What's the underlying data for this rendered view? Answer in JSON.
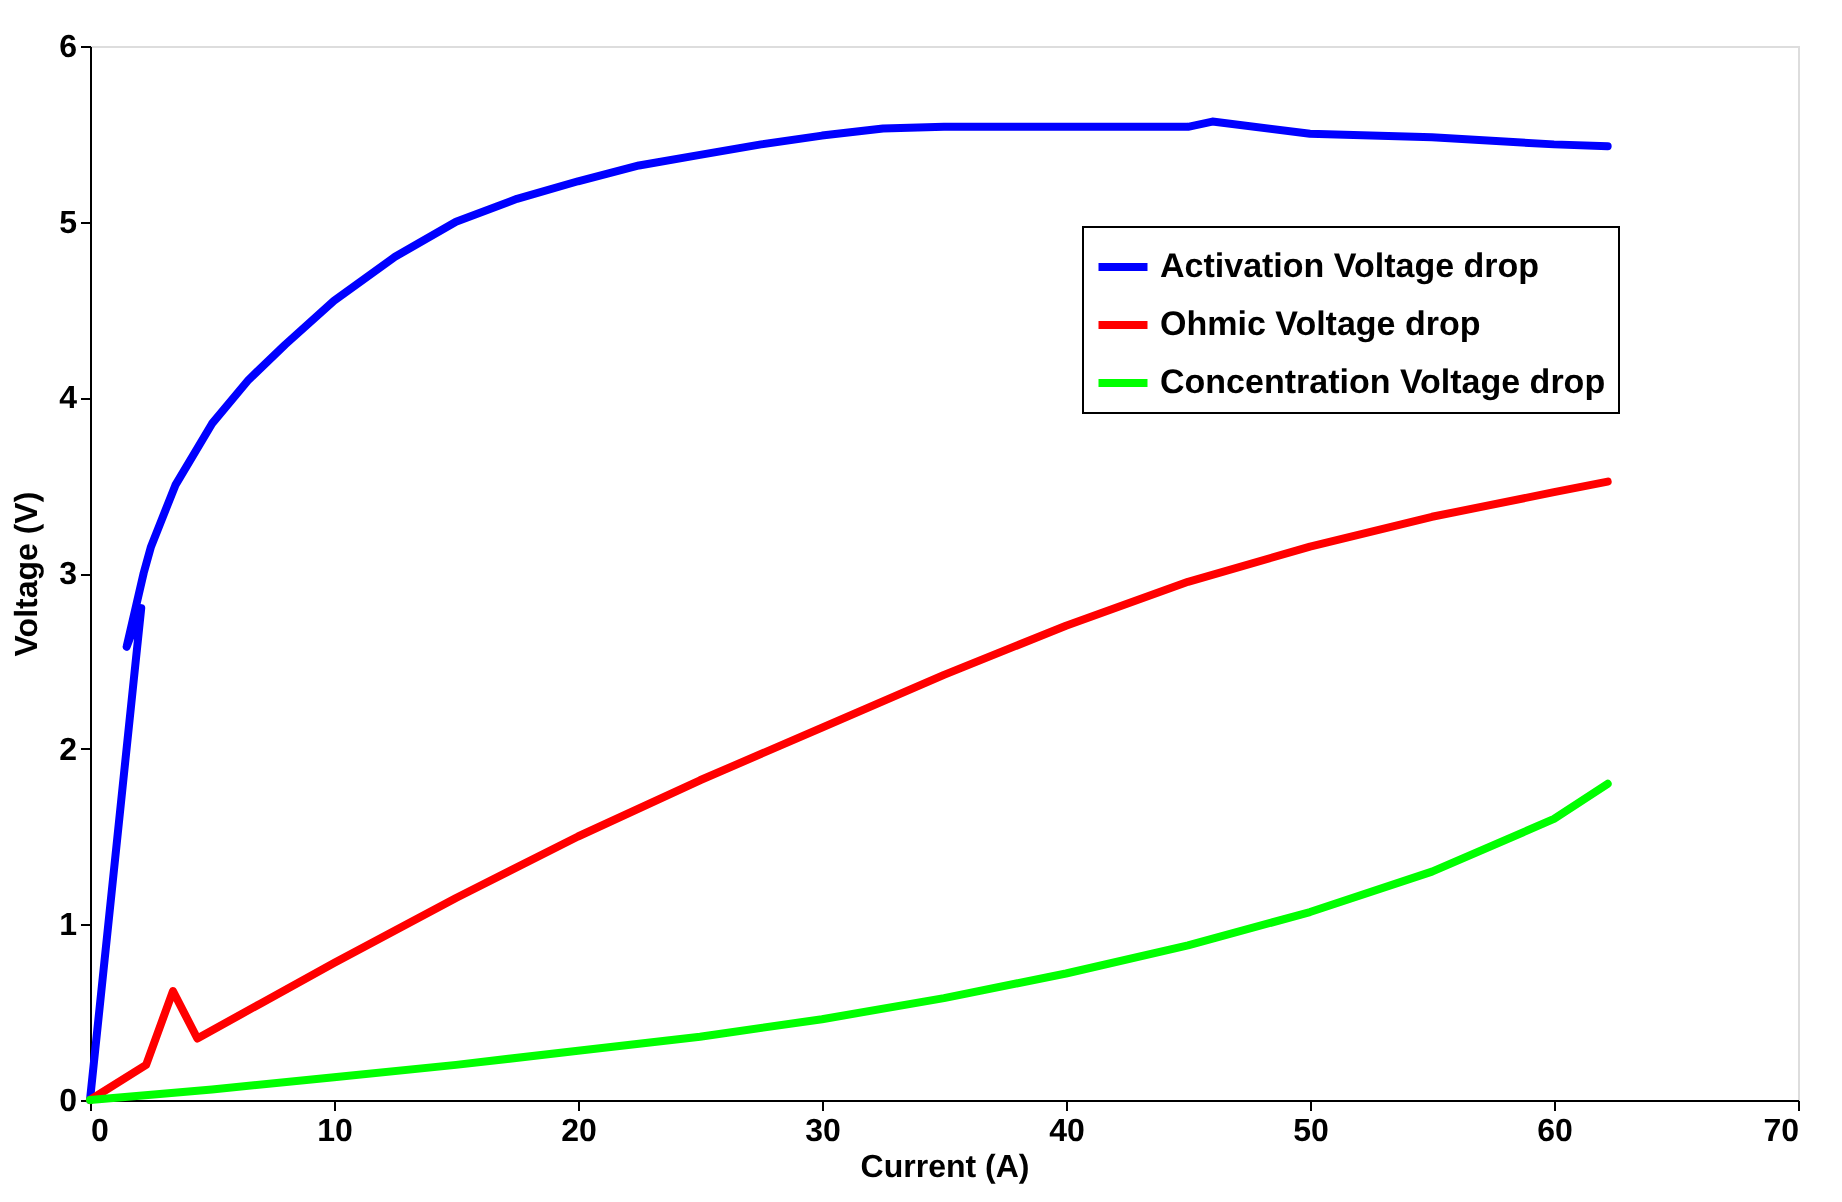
{
  "chart_data": {
    "type": "line",
    "xlabel": "Current (A)",
    "ylabel": "Voltage (V)",
    "xlim": [
      0,
      70
    ],
    "xticks": [
      0,
      10,
      20,
      30,
      40,
      50,
      60,
      70
    ],
    "ylim": [
      0,
      6
    ],
    "yticks": [
      0,
      1,
      2,
      3,
      4,
      5,
      6
    ],
    "grid": false,
    "legend": "top right",
    "marker": "none",
    "line_style": "solid",
    "series": [
      {
        "name": "Activation Voltage drop",
        "color": "#0000ff",
        "x": [
          0,
          2.1,
          1.5,
          2.2,
          2.5,
          3.5,
          5,
          6.5,
          8,
          10,
          12.5,
          15,
          17.5,
          20,
          22.5,
          25,
          27.5,
          30,
          32.5,
          35,
          40,
          45,
          46,
          50,
          55,
          60,
          62.2
        ],
        "values": [
          0,
          2.8,
          2.58,
          3.0,
          3.15,
          3.5,
          3.85,
          4.1,
          4.3,
          4.55,
          4.8,
          5.0,
          5.13,
          5.23,
          5.32,
          5.38,
          5.44,
          5.49,
          5.53,
          5.54,
          5.54,
          5.54,
          5.57,
          5.5,
          5.48,
          5.44,
          5.43
        ]
      },
      {
        "name": "Ohmic Voltage drop",
        "color": "#ff0000",
        "x": [
          0,
          2.3,
          3.4,
          4.4,
          7,
          10,
          15,
          20,
          25,
          30,
          35,
          40,
          45,
          50,
          55,
          60,
          62.2
        ],
        "values": [
          0,
          0.2,
          0.62,
          0.35,
          0.55,
          0.78,
          1.15,
          1.5,
          1.82,
          2.12,
          2.42,
          2.7,
          2.95,
          3.15,
          3.32,
          3.46,
          3.52
        ]
      },
      {
        "name": "Concentration Voltage drop",
        "color": "#00ff00",
        "x": [
          0,
          5,
          10,
          15,
          20,
          25,
          30,
          35,
          40,
          45,
          50,
          55,
          60,
          62.2
        ],
        "values": [
          0,
          0.06,
          0.13,
          0.2,
          0.28,
          0.36,
          0.46,
          0.58,
          0.72,
          0.88,
          1.07,
          1.3,
          1.6,
          1.8
        ]
      }
    ]
  }
}
